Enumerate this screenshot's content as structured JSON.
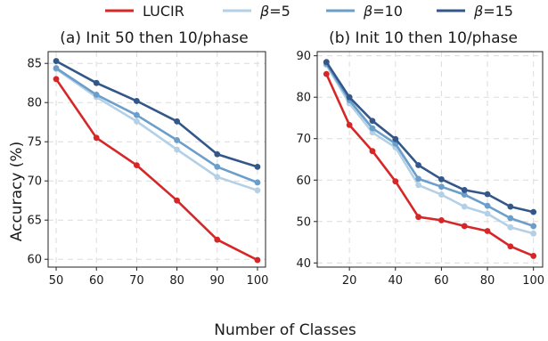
{
  "legend": [
    {
      "label": "LUCIR",
      "beta_prefix": false,
      "value_text": ""
    },
    {
      "label": "=5",
      "beta_prefix": true
    },
    {
      "label": "=10",
      "beta_prefix": true
    },
    {
      "label": "=15",
      "beta_prefix": true
    }
  ],
  "beta_symbol": "β",
  "colors": [
    "#d62728",
    "#b3d0e6",
    "#6a9ecb",
    "#34578a"
  ],
  "ylabel": "Accuracy (%)",
  "xlabel": "Number of Classes",
  "chart_data": [
    {
      "type": "line",
      "title": "(a) Init 50 then 10/phase",
      "x": [
        50,
        60,
        70,
        80,
        90,
        100
      ],
      "xticks": [
        50,
        60,
        70,
        80,
        90,
        100
      ],
      "yticks": [
        60,
        65,
        70,
        75,
        80,
        85
      ],
      "xlim": [
        48,
        102
      ],
      "ylim": [
        59,
        86.5
      ],
      "grid": true,
      "series": [
        {
          "name": "LUCIR",
          "values": [
            83.0,
            75.5,
            72.0,
            67.5,
            62.5,
            59.9
          ]
        },
        {
          "name": "β=5",
          "values": [
            84.3,
            80.7,
            77.6,
            74.0,
            70.5,
            68.8
          ]
        },
        {
          "name": "β=10",
          "values": [
            84.4,
            81.0,
            78.4,
            75.2,
            71.8,
            69.8
          ]
        },
        {
          "name": "β=15",
          "values": [
            85.3,
            82.5,
            80.2,
            77.6,
            73.4,
            71.8
          ]
        }
      ]
    },
    {
      "type": "line",
      "title": "(b) Init 10 then 10/phase",
      "x": [
        10,
        20,
        30,
        40,
        50,
        60,
        70,
        80,
        90,
        100
      ],
      "xticks": [
        20,
        40,
        60,
        80,
        100
      ],
      "yticks": [
        40,
        50,
        60,
        70,
        80,
        90
      ],
      "xlim": [
        6,
        104
      ],
      "ylim": [
        39,
        91
      ],
      "grid": true,
      "series": [
        {
          "name": "LUCIR",
          "values": [
            85.6,
            73.3,
            67.0,
            59.7,
            51.1,
            50.3,
            48.9,
            47.7,
            44.0,
            41.7
          ]
        },
        {
          "name": "β=5",
          "values": [
            87.8,
            78.5,
            71.5,
            67.9,
            58.8,
            56.5,
            53.6,
            51.9,
            48.6,
            47.1
          ]
        },
        {
          "name": "β=10",
          "values": [
            88.1,
            79.3,
            72.5,
            68.8,
            60.3,
            58.4,
            56.5,
            53.8,
            50.8,
            48.9
          ]
        },
        {
          "name": "β=15",
          "values": [
            88.5,
            80.0,
            74.3,
            69.9,
            63.6,
            60.2,
            57.6,
            56.6,
            53.6,
            52.3
          ]
        }
      ]
    }
  ]
}
